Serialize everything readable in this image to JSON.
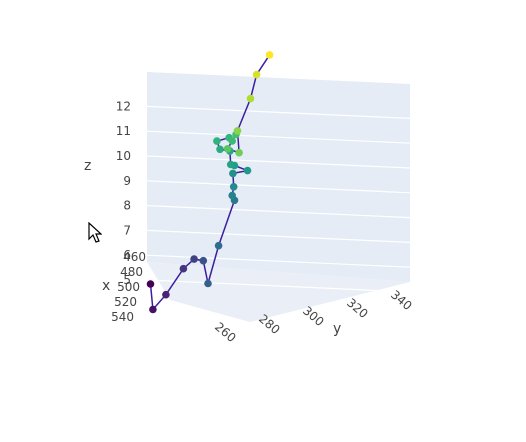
{
  "chart_data": {
    "type": "scatter3d-line",
    "axes": {
      "x": {
        "label": "x",
        "ticks": [
          "460",
          "480",
          "500",
          "520",
          "540"
        ]
      },
      "y": {
        "label": "y",
        "ticks": [
          "260",
          "280",
          "300",
          "320",
          "340"
        ]
      },
      "z": {
        "label": "z",
        "ticks": [
          "5",
          "6",
          "7",
          "8",
          "9",
          "10",
          "11",
          "12"
        ]
      }
    },
    "grid": true,
    "colorscale": "viridis",
    "points": [
      {
        "x": 520,
        "y": 255,
        "z": 5.2,
        "c": 0.0
      },
      {
        "x": 535,
        "y": 258,
        "z": 4.6,
        "c": 0.05
      },
      {
        "x": 530,
        "y": 263,
        "z": 5.0,
        "c": 0.1
      },
      {
        "x": 510,
        "y": 268,
        "z": 5.4,
        "c": 0.15
      },
      {
        "x": 505,
        "y": 272,
        "z": 5.6,
        "c": 0.2
      },
      {
        "x": 505,
        "y": 276,
        "z": 5.5,
        "c": 0.25
      },
      {
        "x": 520,
        "y": 280,
        "z": 5.0,
        "c": 0.3
      },
      {
        "x": 500,
        "y": 282,
        "z": 5.9,
        "c": 0.35
      },
      {
        "x": 470,
        "y": 285,
        "z": 6.8,
        "c": 0.4
      },
      {
        "x": 470,
        "y": 284,
        "z": 7.0,
        "c": 0.45
      },
      {
        "x": 465,
        "y": 284,
        "z": 7.2,
        "c": 0.48
      },
      {
        "x": 460,
        "y": 283,
        "z": 7.6,
        "c": 0.5
      },
      {
        "x": 465,
        "y": 290,
        "z": 7.8,
        "c": 0.53
      },
      {
        "x": 470,
        "y": 285,
        "z": 8.2,
        "c": 0.56
      },
      {
        "x": 475,
        "y": 284,
        "z": 8.4,
        "c": 0.58
      },
      {
        "x": 470,
        "y": 283,
        "z": 8.8,
        "c": 0.6
      },
      {
        "x": 480,
        "y": 280,
        "z": 9.2,
        "c": 0.62
      },
      {
        "x": 475,
        "y": 278,
        "z": 9.4,
        "c": 0.64
      },
      {
        "x": 465,
        "y": 282,
        "z": 9.2,
        "c": 0.66
      },
      {
        "x": 470,
        "y": 284,
        "z": 9.2,
        "c": 0.68
      },
      {
        "x": 465,
        "y": 285,
        "z": 9.3,
        "c": 0.7
      },
      {
        "x": 470,
        "y": 282,
        "z": 8.9,
        "c": 0.74
      },
      {
        "x": 470,
        "y": 287,
        "z": 8.7,
        "c": 0.78
      },
      {
        "x": 460,
        "y": 285,
        "z": 9.3,
        "c": 0.82
      },
      {
        "x": 455,
        "y": 290,
        "z": 10.4,
        "c": 0.88
      },
      {
        "x": 450,
        "y": 292,
        "z": 11.2,
        "c": 0.94
      },
      {
        "x": 445,
        "y": 297,
        "z": 11.8,
        "c": 1.0
      }
    ]
  },
  "cursor_icon": "arrow-pointer-icon"
}
